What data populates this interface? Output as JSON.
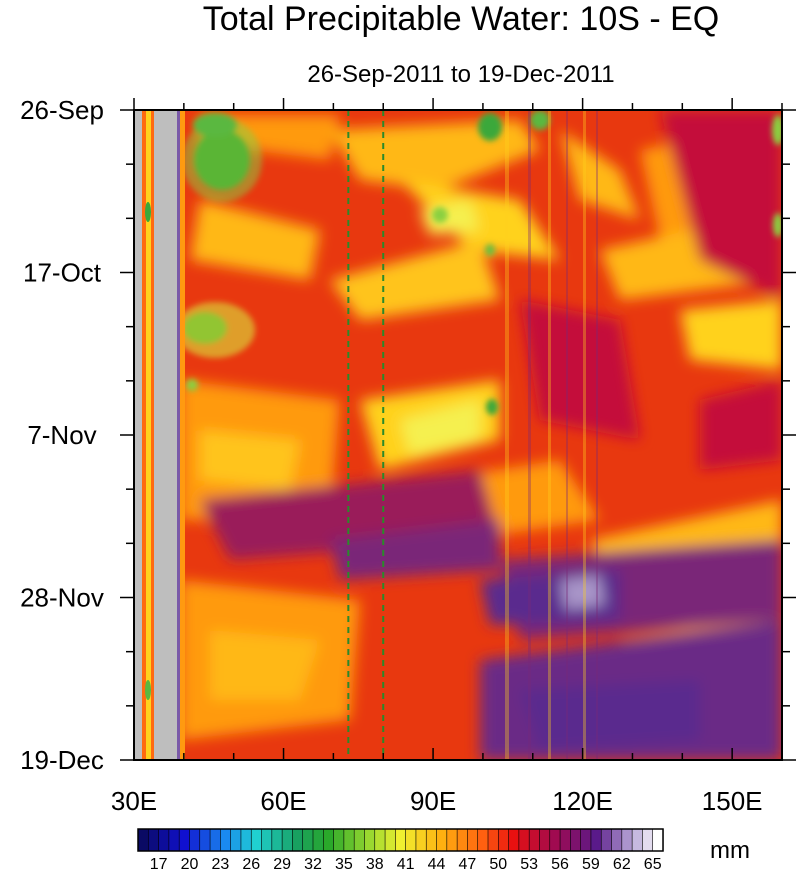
{
  "chart_data": {
    "type": "heatmap",
    "title": "Total Precipitable Water: 10S - EQ",
    "subtitle": "26-Sep-2011 to 19-Dec-2011",
    "x": {
      "min": 30,
      "max": 160,
      "ticks": [
        30,
        60,
        90,
        120,
        150
      ],
      "tick_labels": [
        "30E",
        "60E",
        "90E",
        "120E",
        "150E"
      ],
      "minor_step": 10
    },
    "y": {
      "start_date": "26-Sep",
      "end_date": "19-Dec",
      "tick_days": [
        0,
        21,
        42,
        63,
        84
      ],
      "tick_labels": [
        "26-Sep",
        "17-Oct",
        "7-Nov",
        "28-Nov",
        "19-Dec"
      ],
      "minor_step_days": 7
    },
    "colorbar": {
      "unit": "mm",
      "min": 15,
      "max": 65,
      "step": 1,
      "labels": [
        "17",
        "20",
        "23",
        "26",
        "29",
        "32",
        "35",
        "38",
        "41",
        "44",
        "47",
        "50",
        "53",
        "56",
        "59",
        "62",
        "65"
      ]
    },
    "reference_lines": [
      {
        "lon": 73,
        "style": "dashed",
        "color": "#2a8a2a"
      },
      {
        "lon": 80,
        "style": "dashed",
        "color": "#2a8a2a"
      }
    ],
    "missing_color": "#bebebe"
  }
}
